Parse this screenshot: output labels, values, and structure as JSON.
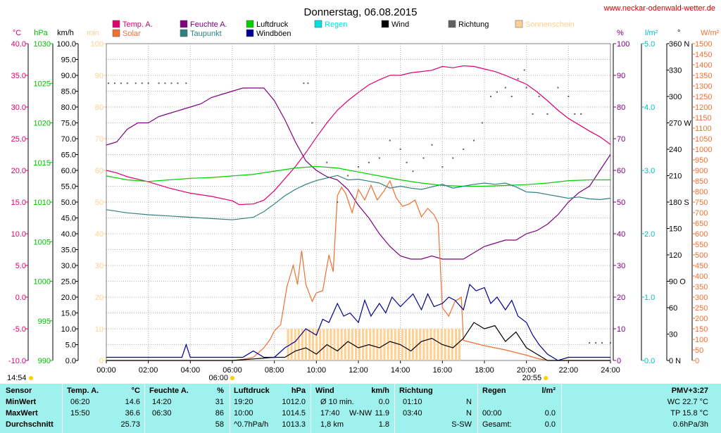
{
  "chart_data": {
    "type": "line",
    "title": "Donnerstag, 06.08.2015",
    "site": "www.neckar-odenwald-wetter.de",
    "x_ticks": [
      "00:00",
      "02:00",
      "04:00",
      "06:00",
      "08:00",
      "10:00",
      "12:00",
      "14:00",
      "16:00",
      "18:00",
      "20:00",
      "22:00",
      "24:00"
    ],
    "xlim_hours": [
      0,
      24
    ],
    "sunrise": "06:00",
    "sunset": "20:55",
    "moonrise": "14:54",
    "legend": [
      {
        "name": "Temp. A.",
        "color": "#e0006e"
      },
      {
        "name": "Feuchte A.",
        "color": "#800080"
      },
      {
        "name": "Luftdruck",
        "color": "#00d000"
      },
      {
        "name": "Regen",
        "color": "#00e0e0"
      },
      {
        "name": "Wind",
        "color": "#000000"
      },
      {
        "name": "Richtung",
        "color": "#606060"
      },
      {
        "name": "Sonnenschein",
        "color": "#ffd090"
      },
      {
        "name": "Solar",
        "color": "#f07030"
      },
      {
        "name": "Taupunkt",
        "color": "#308080"
      },
      {
        "name": "Windböen",
        "color": "#000090"
      }
    ],
    "axes": {
      "temp": {
        "unit": "°C",
        "range": [
          -10,
          40
        ],
        "ticks": [
          "40.0",
          "35.0",
          "30.0",
          "25.0",
          "20.0",
          "15.0",
          "10.0",
          "5.0",
          "0.0",
          "-5.0",
          "-10.0"
        ],
        "color": "#e0006e"
      },
      "pressure": {
        "unit": "hPa",
        "range": [
          990,
          1030
        ],
        "ticks": [
          "1030",
          "1025",
          "1020",
          "1015",
          "1010",
          "1005",
          "1000",
          "995",
          "990"
        ],
        "color": "#00c000"
      },
      "wind": {
        "unit": "km/h",
        "range": [
          0,
          100
        ],
        "ticks": [
          "100.0",
          "95.0",
          "90.0",
          "85.0",
          "80.0",
          "75.0",
          "70.0",
          "65.0",
          "60.0",
          "55.0",
          "50.0",
          "45.0",
          "40.0",
          "35.0",
          "30.0",
          "25.0",
          "20.0",
          "15.0",
          "10.0",
          "5.0",
          "0.0"
        ],
        "color": "#000000"
      },
      "sun_min": {
        "unit": "min",
        "range": [
          0,
          100
        ],
        "ticks": [
          "100",
          "90",
          "80",
          "70",
          "60",
          "50",
          "40",
          "30",
          "20",
          "10",
          "0"
        ],
        "color": "#ffd090"
      },
      "humidity": {
        "unit": "%",
        "range": [
          0,
          100
        ],
        "ticks": [
          "100",
          "90",
          "80",
          "70",
          "60",
          "50",
          "40",
          "30",
          "20",
          "10",
          "0"
        ],
        "color": "#800080"
      },
      "rain": {
        "unit": "l/m²",
        "range": [
          0,
          5
        ],
        "ticks": [
          "5.0",
          "4.0",
          "3.0",
          "2.0",
          "1.0",
          "0.0"
        ],
        "color": "#00c0c0"
      },
      "direction": {
        "unit": "°",
        "range": [
          0,
          360
        ],
        "ticks": [
          "360 N",
          "330",
          "300",
          "270 W",
          "240",
          "210",
          "180 S",
          "150",
          "120",
          "90 O",
          "60",
          "30",
          "0 N"
        ],
        "color": "#000000"
      },
      "solar": {
        "unit": "W/m²",
        "range": [
          0,
          1500
        ],
        "ticks": [
          "1500",
          "1450",
          "1400",
          "1350",
          "1300",
          "1250",
          "1200",
          "1150",
          "1100",
          "1050",
          "1000",
          "950",
          "900",
          "850",
          "800",
          "750",
          "700",
          "650",
          "600",
          "550",
          "500",
          "450",
          "400",
          "350",
          "300",
          "250",
          "200",
          "150",
          "100",
          "50",
          "0"
        ],
        "color": "#f07030"
      }
    },
    "series": [
      {
        "name": "Temp. A.",
        "axis": "temp",
        "x": [
          0,
          0.5,
          1,
          2,
          3,
          4,
          5,
          6,
          6.33,
          7,
          7.5,
          8,
          8.5,
          9,
          9.5,
          10,
          10.5,
          11,
          11.5,
          12,
          12.5,
          13,
          13.5,
          14,
          14.5,
          15,
          15.5,
          16,
          16.5,
          17,
          17.5,
          18,
          18.5,
          19,
          19.5,
          20,
          20.5,
          21,
          21.5,
          22,
          22.5,
          23,
          23.5,
          24
        ],
        "y": [
          20,
          19.6,
          19,
          18.2,
          17.2,
          16.4,
          15.9,
          15.2,
          14.6,
          14.7,
          15.3,
          16.8,
          18.7,
          20.6,
          22.8,
          25.2,
          27.5,
          29.5,
          31,
          32.3,
          33.5,
          34.3,
          35,
          35,
          35.4,
          35.6,
          35.8,
          36.4,
          36.2,
          36.5,
          36.4,
          36,
          35.6,
          35,
          34.3,
          33.6,
          32.4,
          31,
          29.5,
          28.2,
          27.2,
          26.2,
          25.3,
          24.1
        ]
      },
      {
        "name": "Feuchte A.",
        "axis": "humidity",
        "x": [
          0,
          0.5,
          1,
          1.5,
          2,
          2.5,
          3,
          3.5,
          4,
          4.5,
          5,
          5.5,
          6,
          6.5,
          7,
          7.5,
          8,
          8.5,
          9,
          9.5,
          10,
          10.5,
          11,
          11.5,
          12,
          12.5,
          13,
          13.5,
          14,
          14.5,
          15,
          15.5,
          16,
          16.5,
          17,
          17.5,
          18,
          18.5,
          19,
          19.5,
          20,
          20.5,
          21,
          21.5,
          22,
          22.5,
          23,
          23.5,
          24
        ],
        "y": [
          68,
          69,
          73,
          75,
          75,
          77,
          78,
          79,
          80,
          81,
          83,
          84,
          85,
          86,
          86,
          86,
          82,
          76,
          69,
          63,
          60,
          58,
          57,
          54,
          49,
          45,
          40,
          36,
          33,
          32,
          32,
          33,
          32,
          32,
          32,
          34,
          36,
          37,
          38,
          38,
          40,
          41,
          43,
          46,
          50,
          53,
          55,
          60,
          65
        ]
      },
      {
        "name": "Luftdruck",
        "axis": "pressure",
        "x": [
          0,
          1,
          2,
          3,
          4,
          5,
          6,
          7,
          8,
          9,
          10,
          11,
          12,
          13,
          14,
          15,
          16,
          17,
          18,
          19,
          20,
          21,
          22,
          23,
          24
        ],
        "y": [
          1013.3,
          1012.8,
          1012.6,
          1012.8,
          1013,
          1013.1,
          1013.3,
          1013.5,
          1013.9,
          1014.3,
          1014.5,
          1014.3,
          1013.8,
          1013.3,
          1012.8,
          1012.4,
          1012.1,
          1012,
          1012,
          1012.1,
          1012.2,
          1012.4,
          1012.7,
          1012.8,
          1012.8
        ]
      },
      {
        "name": "Taupunkt",
        "axis": "temp",
        "x": [
          0,
          1,
          2,
          3,
          4,
          5,
          6,
          7,
          7.5,
          8,
          8.5,
          9,
          9.5,
          10,
          10.5,
          11,
          11.5,
          12,
          12.5,
          13,
          13.5,
          14,
          14.5,
          15,
          15.5,
          16,
          16.5,
          17,
          17.5,
          18,
          18.5,
          19,
          19.5,
          20,
          20.5,
          21,
          21.5,
          22,
          22.5,
          23,
          23.5,
          24
        ],
        "y": [
          13.8,
          13.3,
          13,
          12.8,
          12.6,
          12.4,
          12.2,
          12.6,
          13.5,
          14.7,
          16,
          17,
          17.8,
          18.4,
          18.8,
          19.2,
          18.5,
          18.6,
          18.3,
          18,
          17.2,
          17.5,
          17.2,
          17,
          17.4,
          17.8,
          17.2,
          17.5,
          17.8,
          18,
          17.8,
          18,
          17.4,
          16.6,
          16.5,
          16.2,
          15.9,
          15.6,
          15.8,
          15.5,
          15.4,
          15.6
        ]
      },
      {
        "name": "Solar",
        "axis": "solar",
        "x": [
          0,
          6,
          6.5,
          7,
          7.5,
          7.8,
          8,
          8.3,
          8.6,
          8.9,
          9.1,
          9.3,
          9.5,
          9.8,
          10,
          10.3,
          10.6,
          10.8,
          11,
          11.2,
          11.4,
          11.7,
          12,
          12.3,
          12.6,
          12.9,
          13.2,
          13.5,
          13.8,
          14.1,
          14.4,
          14.7,
          15,
          15.3,
          15.6,
          15.8,
          16,
          16.3,
          16.6,
          16.9,
          17,
          18,
          19,
          20,
          20.5,
          21,
          24
        ],
        "y": [
          0,
          0,
          5,
          15,
          60,
          100,
          140,
          170,
          350,
          450,
          360,
          520,
          360,
          280,
          320,
          330,
          500,
          420,
          780,
          820,
          790,
          700,
          810,
          760,
          830,
          760,
          800,
          850,
          770,
          730,
          740,
          760,
          680,
          720,
          690,
          650,
          250,
          210,
          280,
          300,
          95,
          70,
          50,
          25,
          10,
          0,
          0
        ]
      },
      {
        "name": "Wind",
        "axis": "wind",
        "x": [
          0,
          1,
          2,
          3,
          4,
          5,
          6,
          7,
          8,
          8.5,
          9,
          9.5,
          10,
          10.5,
          11,
          11.5,
          12,
          12.5,
          13,
          13.5,
          14,
          14.5,
          15,
          15.5,
          16,
          16.5,
          17,
          17.5,
          18,
          18.5,
          19,
          19.5,
          20,
          20.5,
          21,
          22,
          24
        ],
        "y": [
          0,
          0,
          0,
          0,
          0,
          0,
          0,
          0.5,
          1,
          1,
          3,
          4,
          2,
          5,
          3,
          6,
          4,
          5,
          4,
          6,
          5,
          3,
          6,
          7,
          5,
          4,
          7,
          12,
          10,
          11,
          6,
          9,
          4,
          2,
          0,
          0,
          0
        ]
      },
      {
        "name": "Windböen",
        "axis": "wind",
        "x": [
          0,
          1,
          2,
          3,
          3.6,
          3.8,
          4,
          5,
          6,
          6.5,
          7,
          7.5,
          8,
          8.5,
          9,
          9.5,
          10,
          10.3,
          10.6,
          11,
          11.3,
          11.6,
          12,
          12.3,
          12.6,
          13,
          13.3,
          13.6,
          14,
          14.3,
          14.6,
          15,
          15.3,
          15.6,
          16,
          16.3,
          16.6,
          17,
          17.3,
          17.6,
          18,
          18.3,
          18.6,
          19,
          19.3,
          19.6,
          20,
          20.3,
          20.6,
          21,
          21.5,
          22,
          24
        ],
        "y": [
          1,
          1,
          1,
          1,
          1,
          5,
          1,
          1,
          1,
          1,
          3,
          1,
          1,
          4,
          6,
          10,
          8,
          13,
          12,
          18,
          14,
          15,
          12,
          19,
          14,
          18,
          15,
          20,
          17,
          19,
          21,
          16,
          21,
          17,
          18,
          20,
          19,
          16,
          24,
          22,
          23,
          18,
          20,
          16,
          19,
          14,
          12,
          8,
          5,
          2,
          0,
          1,
          1
        ]
      },
      {
        "name": "Richtung",
        "axis": "direction",
        "x": [
          0.1,
          0.4,
          0.7,
          1.0,
          1.4,
          1.7,
          2.0,
          2.5,
          2.8,
          3.1,
          3.4,
          3.8,
          9.4,
          9.6,
          9.8,
          10.5,
          11.0,
          11.5,
          12.0,
          12.5,
          13.0,
          13.5,
          14.0,
          14.3,
          14.6,
          15.1,
          15.5,
          16.0,
          16.5,
          17.0,
          17.5,
          17.9,
          18.3,
          18.6,
          19.0,
          19.3,
          19.6,
          19.9,
          20.0,
          20.3,
          20.6,
          21.0,
          21.5,
          22.0,
          22.3,
          22.6,
          23.0,
          23.3,
          23.6,
          24
        ],
        "y": [
          315,
          315,
          315,
          315,
          315,
          315,
          315,
          315,
          315,
          315,
          315,
          315,
          315,
          315,
          270,
          225,
          180,
          210,
          220,
          225,
          230,
          250,
          240,
          225,
          215,
          230,
          245,
          220,
          230,
          240,
          250,
          270,
          300,
          305,
          310,
          300,
          320,
          330,
          310,
          280,
          300,
          280,
          310,
          300,
          280,
          280,
          20,
          20,
          20,
          20
        ]
      }
    ],
    "sunshine_minutes": {
      "start_hour": 8.6,
      "end_hour": 16.8,
      "value": 10,
      "step_hours": 0.17
    }
  },
  "stats": {
    "headers": {
      "sensor": "Sensor",
      "temp": "Temp. A.",
      "temp_unit": "°C",
      "hum": "Feuchte A.",
      "hum_unit": "%",
      "press": "Luftdruck",
      "press_unit": "hPa",
      "wind": "Wind",
      "wind_unit": "km/h",
      "dir": "Richtung",
      "rain": "Regen",
      "rain_unit": "l/m²",
      "pmv": "PMV+3:27"
    },
    "rows": [
      {
        "label": "MinWert",
        "temp_time": "06:20",
        "temp_val": "14.6",
        "hum_time": "14:20",
        "hum_val": "31",
        "press_time": "19:20",
        "press_val": "1012.0",
        "wind_a": "Ø 10 min.",
        "wind_val": "0.0",
        "dir_time": "01:10",
        "dir_val": "N",
        "rain_time": "",
        "rain_val": "",
        "extra": "WC 22.7 °C"
      },
      {
        "label": "MaxWert",
        "temp_time": "15:50",
        "temp_val": "36.6",
        "hum_time": "06:30",
        "hum_val": "86",
        "press_time": "10:00",
        "press_val": "1014.5",
        "wind_a": "17:40",
        "wind_b": "W-NW",
        "wind_val": "11.9",
        "dir_time": "03:40",
        "dir_val": "N",
        "rain_time": "00:00",
        "rain_val": "0.0",
        "extra": "TP 15.8 °C"
      },
      {
        "label": "Durchschnitt",
        "temp_time": "",
        "temp_val": "25.73",
        "hum_time": "",
        "hum_val": "58",
        "press_time": "^0.7hPa/h",
        "press_val": "1013.3",
        "wind_a": "1,8 km",
        "wind_val": "1.8",
        "dir_time": "",
        "dir_val": "S-SW",
        "rain_time": "Gesamt:",
        "rain_val": "0.0",
        "extra": "0.6hPa/3h"
      }
    ]
  }
}
